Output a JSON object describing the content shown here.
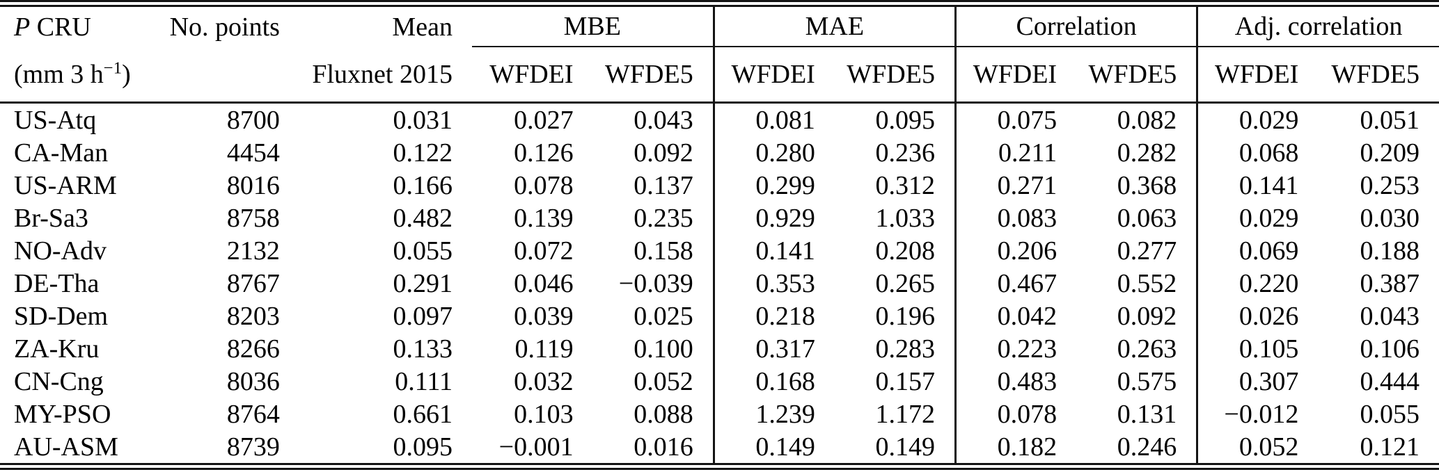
{
  "table": {
    "site_header": {
      "symbol": "P",
      "rest": "CRU",
      "unit_prefix": "(mm 3 h",
      "unit_sup": "−1",
      "unit_suffix": ")"
    },
    "points_header": "No. points",
    "mean_header": {
      "line1": "Mean",
      "line2": "Fluxnet 2015"
    },
    "groups": [
      {
        "label": "MBE"
      },
      {
        "label": "MAE"
      },
      {
        "label": "Correlation"
      },
      {
        "label": "Adj. correlation"
      }
    ],
    "subcol_labels": [
      "WFDEI",
      "WFDE5"
    ],
    "rows": [
      {
        "site": "US-Atq",
        "points": "8700",
        "mean": "0.031",
        "values": [
          "0.027",
          "0.043",
          "0.081",
          "0.095",
          "0.075",
          "0.082",
          "0.029",
          "0.051"
        ]
      },
      {
        "site": "CA-Man",
        "points": "4454",
        "mean": "0.122",
        "values": [
          "0.126",
          "0.092",
          "0.280",
          "0.236",
          "0.211",
          "0.282",
          "0.068",
          "0.209"
        ]
      },
      {
        "site": "US-ARM",
        "points": "8016",
        "mean": "0.166",
        "values": [
          "0.078",
          "0.137",
          "0.299",
          "0.312",
          "0.271",
          "0.368",
          "0.141",
          "0.253"
        ]
      },
      {
        "site": "Br-Sa3",
        "points": "8758",
        "mean": "0.482",
        "values": [
          "0.139",
          "0.235",
          "0.929",
          "1.033",
          "0.083",
          "0.063",
          "0.029",
          "0.030"
        ]
      },
      {
        "site": "NO-Adv",
        "points": "2132",
        "mean": "0.055",
        "values": [
          "0.072",
          "0.158",
          "0.141",
          "0.208",
          "0.206",
          "0.277",
          "0.069",
          "0.188"
        ]
      },
      {
        "site": "DE-Tha",
        "points": "8767",
        "mean": "0.291",
        "values": [
          "0.046",
          "−0.039",
          "0.353",
          "0.265",
          "0.467",
          "0.552",
          "0.220",
          "0.387"
        ]
      },
      {
        "site": "SD-Dem",
        "points": "8203",
        "mean": "0.097",
        "values": [
          "0.039",
          "0.025",
          "0.218",
          "0.196",
          "0.042",
          "0.092",
          "0.026",
          "0.043"
        ]
      },
      {
        "site": "ZA-Kru",
        "points": "8266",
        "mean": "0.133",
        "values": [
          "0.119",
          "0.100",
          "0.317",
          "0.283",
          "0.223",
          "0.263",
          "0.105",
          "0.106"
        ]
      },
      {
        "site": "CN-Cng",
        "points": "8036",
        "mean": "0.111",
        "values": [
          "0.032",
          "0.052",
          "0.168",
          "0.157",
          "0.483",
          "0.575",
          "0.307",
          "0.444"
        ]
      },
      {
        "site": "MY-PSO",
        "points": "8764",
        "mean": "0.661",
        "values": [
          "0.103",
          "0.088",
          "1.239",
          "1.172",
          "0.078",
          "0.131",
          "−0.012",
          "0.055"
        ]
      },
      {
        "site": "AU-ASM",
        "points": "8739",
        "mean": "0.095",
        "values": [
          "−0.001",
          "0.016",
          "0.149",
          "0.149",
          "0.182",
          "0.246",
          "0.052",
          "0.121"
        ]
      }
    ]
  },
  "colors": {
    "text": "#000000",
    "rule": "#141414",
    "background": "#ffffff"
  }
}
